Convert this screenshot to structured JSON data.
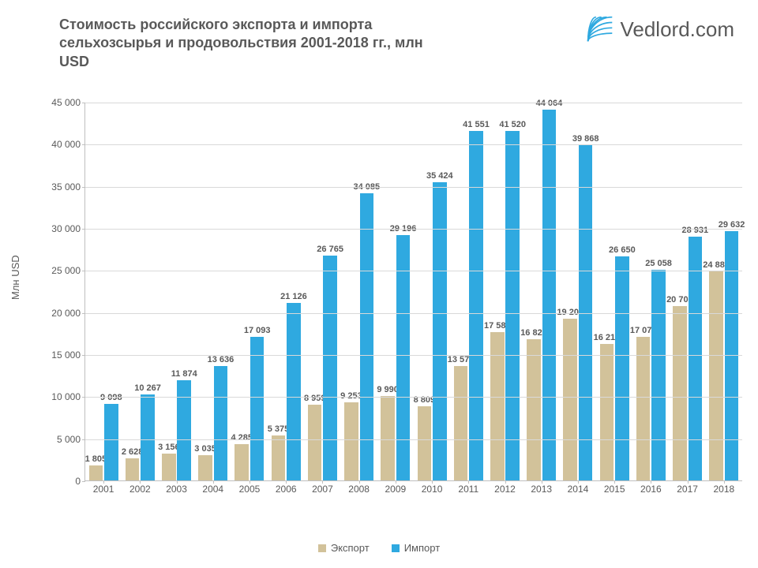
{
  "title": "Стоимость российского экспорта и импорта сельхозсырья и продовольствия 2001-2018 гг., млн USD",
  "logo_text": "Vedlord.com",
  "y_axis_label": "Млн USD",
  "chart": {
    "type": "bar",
    "ylim": [
      0,
      45000
    ],
    "ytick_step": 5000,
    "y_ticks": [
      "0",
      "5 000",
      "10 000",
      "15 000",
      "20 000",
      "25 000",
      "30 000",
      "35 000",
      "40 000",
      "45 000"
    ],
    "categories": [
      "2001",
      "2002",
      "2003",
      "2004",
      "2005",
      "2006",
      "2007",
      "2008",
      "2009",
      "2010",
      "2011",
      "2012",
      "2013",
      "2014",
      "2015",
      "2016",
      "2017",
      "2018"
    ],
    "series": [
      {
        "name": "Экспорт",
        "color": "#d2c29a",
        "values": [
          1805,
          2628,
          3156,
          3035,
          4285,
          5375,
          8959,
          9253,
          9990,
          8809,
          13579,
          17581,
          16826,
          19208,
          16215,
          17074,
          20702,
          24885
        ],
        "labels": [
          "1 805",
          "2 628",
          "3 156",
          "3 035",
          "4 285",
          "5 375",
          "8 959",
          "9 253",
          "9 990",
          "8 809",
          "13 579",
          "17 581",
          "16 826",
          "19 208",
          "16 215",
          "17 074",
          "20 702",
          "24 885"
        ]
      },
      {
        "name": "Импорт",
        "color": "#2fa9e0",
        "values": [
          9098,
          10267,
          11874,
          13636,
          17093,
          21126,
          26765,
          34085,
          29196,
          35424,
          41551,
          41520,
          44064,
          39868,
          26650,
          25058,
          28931,
          29632
        ],
        "labels": [
          "9 098",
          "10 267",
          "11 874",
          "13 636",
          "17 093",
          "21 126",
          "26 765",
          "34 085",
          "29 196",
          "35 424",
          "41 551",
          "41 520",
          "44 064",
          "39 868",
          "26 650",
          "25 058",
          "28 931",
          "29 632"
        ]
      }
    ],
    "background_color": "#ffffff",
    "grid_color": "#d9d9d9",
    "axis_color": "#bfbfbf",
    "label_fontsize": 11,
    "tick_fontsize": 12,
    "title_fontsize": 18,
    "title_color": "#595959"
  },
  "legend": {
    "export": "Экспорт",
    "import": "Импорт"
  }
}
